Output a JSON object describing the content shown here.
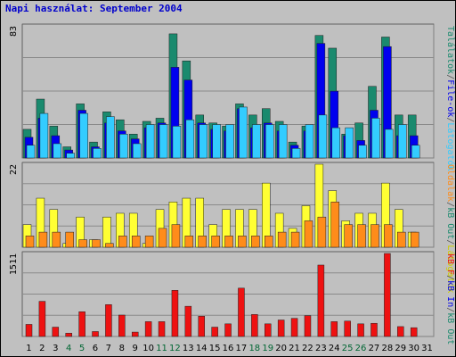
{
  "chart_data": {
    "type": "bar",
    "title": "Napi használat: September 2004",
    "categories": [
      "1",
      "2",
      "3",
      "4",
      "5",
      "6",
      "7",
      "8",
      "9",
      "10",
      "11",
      "12",
      "13",
      "14",
      "15",
      "16",
      "17",
      "18",
      "19",
      "20",
      "21",
      "22",
      "23",
      "24",
      "25",
      "26",
      "27",
      "28",
      "29",
      "30",
      "31"
    ],
    "weekend_days": [
      4,
      5,
      11,
      12,
      18,
      19,
      25,
      26
    ],
    "colors": {
      "title": "#0000cc",
      "weekday_label": "#000000",
      "weekend_label": "#006633",
      "hits": "#1a8a6e",
      "files": "#0000ee",
      "pages": "#33ccff",
      "kb_in": "#ffff33",
      "kb_out": "#ff8c1a",
      "kb_total": "#ee1111"
    },
    "panels": [
      {
        "id": "requests",
        "max_label": "83",
        "ylim": [
          0,
          83
        ],
        "right_label_parts": [
          {
            "text": "Találatok",
            "color": "#1a8a6e"
          },
          {
            "text": "/",
            "color": "#555555"
          },
          {
            "text": "File-ok",
            "color": "#0000ee"
          },
          {
            "text": "/",
            "color": "#555555"
          },
          {
            "text": "Látogatók",
            "color": "#33ccff"
          }
        ],
        "series": [
          {
            "name": "Találatok",
            "values": [
              18,
              37,
              20,
              7,
              34,
              10,
              29,
              24,
              15,
              23,
              25,
              78,
              61,
              27,
              22,
              20,
              34,
              27,
              31,
              23,
              10,
              20,
              77,
              69,
              15,
              22,
              45,
              76,
              27,
              27,
              null
            ]
          },
          {
            "name": "File-ok",
            "values": [
              13,
              25,
              14,
              5,
              30,
              7,
              22,
              17,
              12,
              19,
              22,
              57,
              49,
              22,
              18,
              17,
              31,
              19,
              22,
              17,
              8,
              17,
              72,
              42,
              14,
              11,
              30,
              70,
              14,
              14,
              null
            ]
          },
          {
            "name": "Látogatók",
            "values": [
              8,
              28,
              9,
              3,
              28,
              6,
              26,
              15,
              9,
              21,
              21,
              20,
              24,
              21,
              21,
              21,
              32,
              21,
              21,
              21,
              6,
              21,
              27,
              19,
              19,
              8,
              25,
              18,
              21,
              8,
              null
            ]
          }
        ]
      },
      {
        "id": "traffic",
        "max_label": "22",
        "ylim": [
          0,
          22
        ],
        "right_label_parts": [
          {
            "text": "Oldalak",
            "color": "#ff8c1a"
          },
          {
            "text": "/",
            "color": "#555555"
          },
          {
            "text": "kB Out",
            "color": "#1a8a6e"
          },
          {
            "text": "/",
            "color": "#555555"
          },
          {
            "text": "Látogatók",
            "color": "#cccc00"
          }
        ],
        "series": [
          {
            "name": "kB In",
            "values": [
              6,
              13,
              10,
              1,
              8,
              2,
              8,
              9,
              9,
              1,
              10,
              12,
              13,
              13,
              6,
              10,
              10,
              10,
              17,
              9,
              5,
              11,
              22,
              15,
              7,
              9,
              9,
              17,
              10,
              4,
              null
            ]
          },
          {
            "name": "kB Out",
            "values": [
              3,
              4,
              4,
              4,
              2,
              2,
              1,
              3,
              3,
              3,
              5,
              6,
              3,
              3,
              3,
              3,
              3,
              3,
              3,
              4,
              4,
              7,
              8,
              12,
              6,
              6,
              6,
              6,
              4,
              4,
              null
            ]
          }
        ]
      },
      {
        "id": "volume",
        "max_label": "1511",
        "ylim": [
          0,
          1511
        ],
        "right_label_parts": [
          {
            "text": "kB F",
            "color": "#ee1111"
          },
          {
            "text": "/",
            "color": "#555555"
          },
          {
            "text": "kB In",
            "color": "#0000ee"
          },
          {
            "text": "/",
            "color": "#555555"
          },
          {
            "text": "kB Out",
            "color": "#1a8a6e"
          }
        ],
        "series": [
          {
            "name": "kB F",
            "values": [
              220,
              640,
              170,
              60,
              450,
              90,
              580,
              390,
              80,
              270,
              270,
              840,
              550,
              370,
              170,
              230,
              880,
              400,
              230,
              300,
              330,
              380,
              1300,
              270,
              280,
              230,
              240,
              1511,
              180,
              160,
              null
            ]
          }
        ]
      }
    ]
  }
}
